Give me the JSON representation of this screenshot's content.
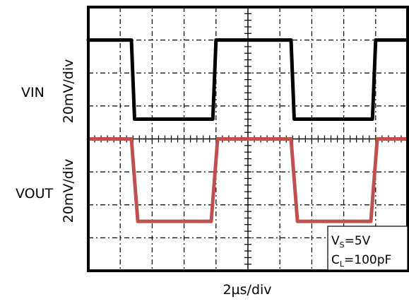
{
  "chart_data": {
    "type": "line",
    "xlabel": "2µs/div",
    "x_divisions": 10,
    "y_divisions": 8,
    "grid": true,
    "series": [
      {
        "name": "VIN",
        "unit_label": "20mV/div",
        "color": "#000000",
        "x": [
          0,
          1.35,
          1.45,
          3.9,
          4.0,
          6.35,
          6.45,
          8.9,
          9.0,
          10
        ],
        "y": [
          7.0,
          7.0,
          4.6,
          4.6,
          7.0,
          7.0,
          4.6,
          4.6,
          7.0,
          7.0
        ]
      },
      {
        "name": "VOUT",
        "unit_label": "20mV/div",
        "color": "#c0504d",
        "x": [
          0,
          1.35,
          1.55,
          3.85,
          4.05,
          6.35,
          6.55,
          8.85,
          9.05,
          10
        ],
        "y": [
          4.0,
          4.0,
          1.5,
          1.5,
          4.0,
          4.0,
          1.5,
          1.5,
          4.0,
          4.0
        ]
      }
    ],
    "annotation": {
      "line1_main": "V",
      "line1_sub": "S",
      "line1_rest": "=5V",
      "line2_main": "C",
      "line2_sub": "L",
      "line2_rest": "=100pF"
    }
  }
}
